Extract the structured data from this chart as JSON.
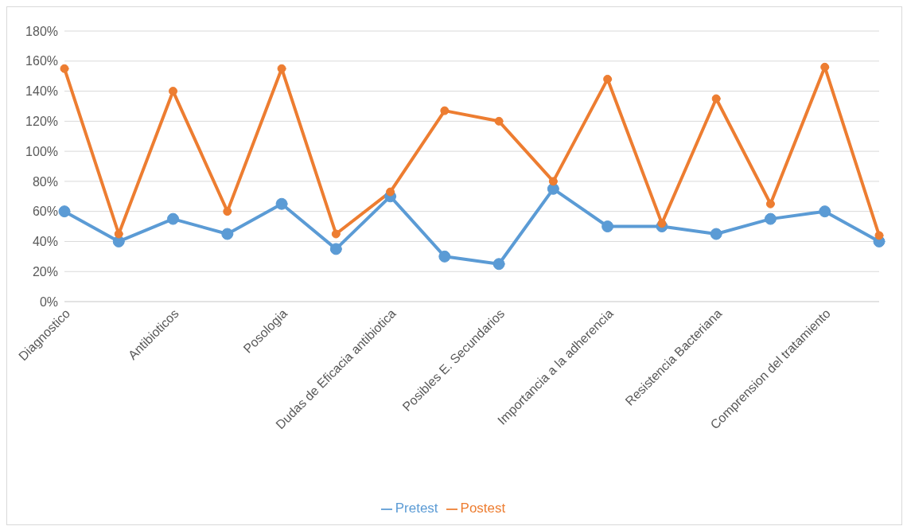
{
  "chart_data": {
    "type": "line",
    "categories": [
      "Diagnostico",
      null,
      "Antibioticos",
      null,
      "Posologia",
      null,
      "Dudas de Eficacia antibiotica",
      null,
      "Posibles E. Secundarios",
      null,
      "Importancia a la adherencia",
      null,
      "Resistencia Bacteriana",
      null,
      "Comprension del tratamiento",
      null
    ],
    "series": [
      {
        "name": "Pretest",
        "color": "#5b9bd5",
        "values": [
          60,
          40,
          55,
          45,
          65,
          35,
          70,
          30,
          25,
          75,
          50,
          50,
          45,
          55,
          60,
          40
        ]
      },
      {
        "name": "Postest",
        "color": "#ed7d31",
        "values": [
          155,
          45,
          140,
          60,
          155,
          45,
          73,
          127,
          120,
          80,
          148,
          52,
          135,
          65,
          156,
          44
        ]
      }
    ],
    "ylim": [
      0,
      180
    ],
    "yticks": [
      {
        "value": 0,
        "label": "0%"
      },
      {
        "value": 20,
        "label": "20%"
      },
      {
        "value": 40,
        "label": "40%"
      },
      {
        "value": 60,
        "label": "60%"
      },
      {
        "value": 80,
        "label": "80%"
      },
      {
        "value": 100,
        "label": "100%"
      },
      {
        "value": 120,
        "label": "120%"
      },
      {
        "value": 140,
        "label": "140%"
      },
      {
        "value": 160,
        "label": "160%"
      },
      {
        "value": 180,
        "label": "180%"
      }
    ],
    "grid": "y",
    "legend": "bottom",
    "marker": "circle",
    "line_style": "solid"
  }
}
